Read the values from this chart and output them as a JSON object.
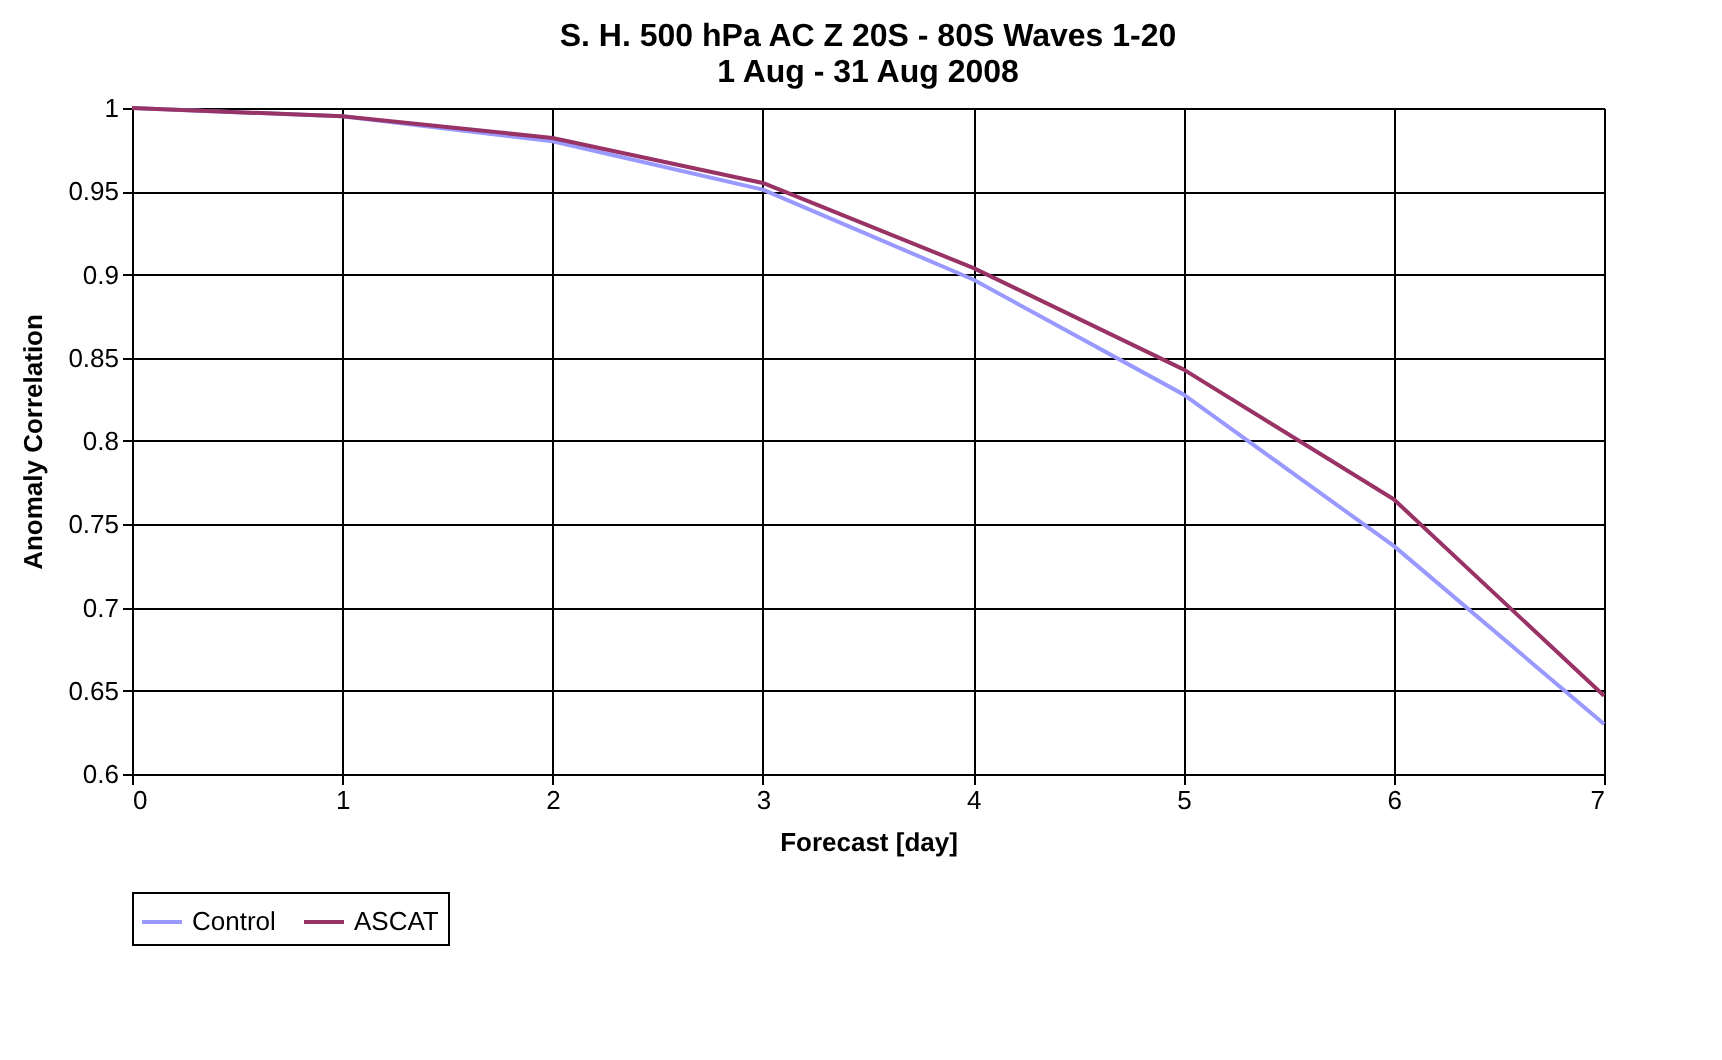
{
  "chart_data": {
    "type": "line",
    "title": "S. H. 500 hPa AC Z 20S - 80S   Waves 1-20\n1 Aug - 31 Aug 2008",
    "xlabel": "Forecast [day]",
    "ylabel": "Anomaly Correlation",
    "x": [
      0,
      1,
      2,
      3,
      4,
      5,
      6,
      7
    ],
    "series": [
      {
        "name": "Control",
        "color": "#9999ff",
        "values": [
          1,
          0.995,
          0.98,
          0.951,
          0.897,
          0.828,
          0.737,
          0.63
        ]
      },
      {
        "name": "ASCAT",
        "color": "#993366",
        "values": [
          1,
          0.995,
          0.982,
          0.955,
          0.904,
          0.843,
          0.765,
          0.647
        ]
      }
    ],
    "xlim": [
      0,
      7
    ],
    "xticks": [
      0,
      1,
      2,
      3,
      4,
      5,
      6,
      7
    ],
    "ylim": [
      0.6,
      1
    ],
    "yticks": [
      0.6,
      0.65,
      0.7,
      0.75,
      0.8,
      0.85,
      0.9,
      0.95,
      1
    ],
    "grid": true,
    "legend": "bottom",
    "marker": "none",
    "line_style": "solid"
  }
}
